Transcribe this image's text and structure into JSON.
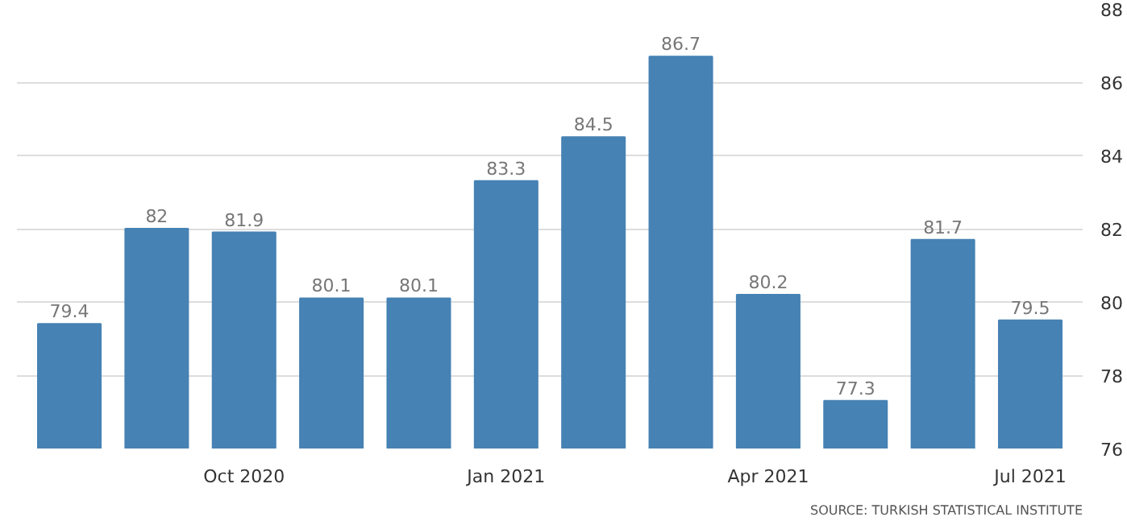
{
  "chart_data": {
    "type": "bar",
    "categories": [
      null,
      null,
      "Oct 2020",
      null,
      null,
      "Jan 2021",
      null,
      null,
      "Apr 2021",
      null,
      null,
      "Jul 2021"
    ],
    "values": [
      79.4,
      82,
      81.9,
      80.1,
      80.1,
      83.3,
      84.5,
      86.7,
      80.2,
      77.3,
      81.7,
      79.5
    ],
    "color": "#4682b4",
    "ylim": [
      76,
      88
    ],
    "yticks": [
      76,
      78,
      80,
      82,
      84,
      86,
      88
    ],
    "grid": "y",
    "data_labels": true,
    "annotations": [
      "SOURCE: TURKISH STATISTICAL INSTITUTE"
    ]
  }
}
